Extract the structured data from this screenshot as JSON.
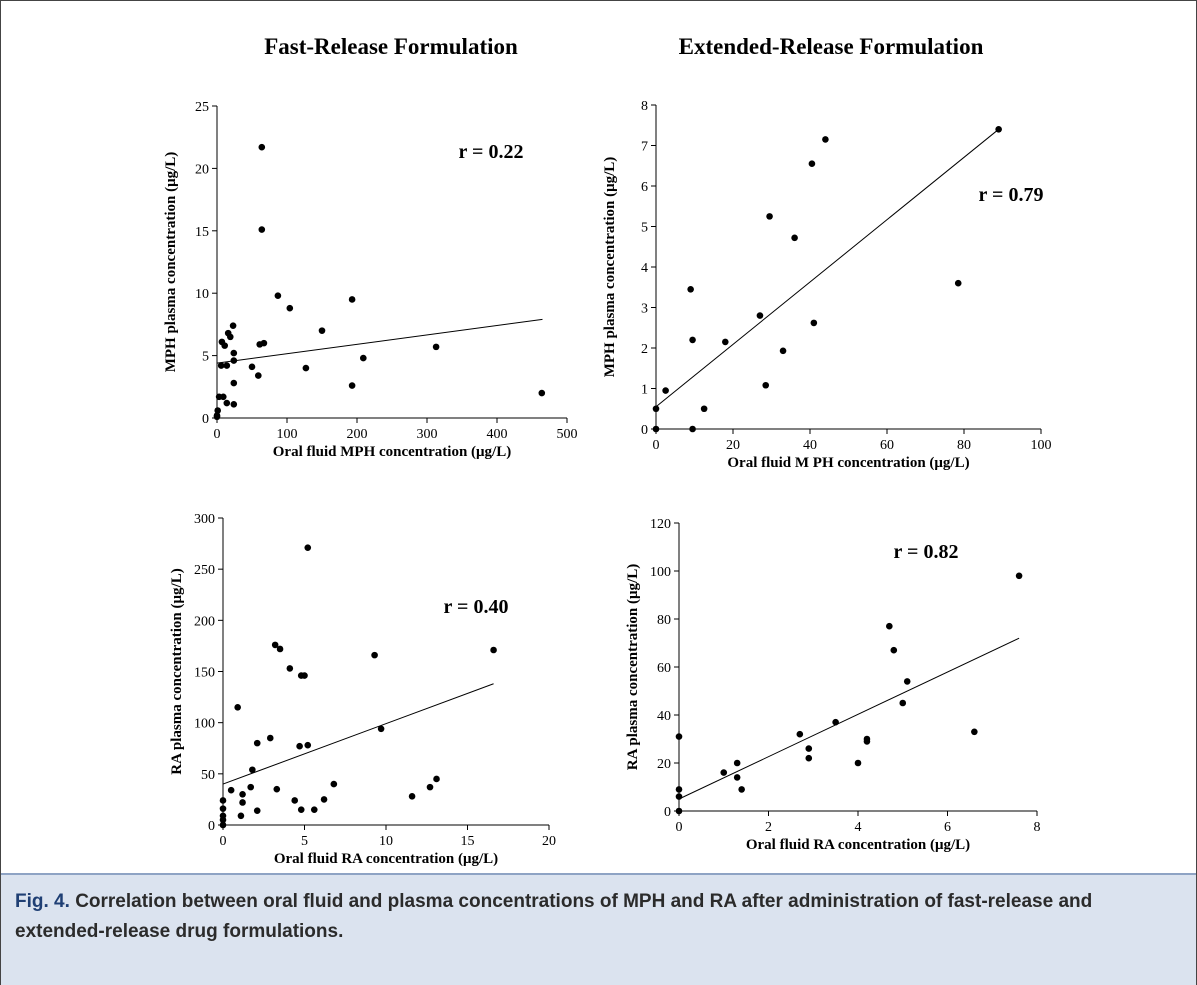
{
  "column_titles": [
    "Fast-Release Formulation",
    "Extended-Release Formulation"
  ],
  "caption": {
    "label": "Fig. 4.",
    "text": "Correlation between oral fluid and plasma concentrations of MPH and RA after administration of fast-release and extended-release drug formulations."
  },
  "chart_data": [
    {
      "type": "scatter",
      "ylabel": "MPH plasma concentration (μg/L)",
      "xlabel": "Oral fluid MPH concentration (μg/L)",
      "annotation": "r = 0.22",
      "color": "#000000",
      "x": [
        0,
        1,
        0,
        3,
        9,
        6,
        7,
        11,
        16,
        19,
        23,
        14,
        24,
        24,
        24,
        14,
        24,
        50,
        59,
        64,
        64,
        61,
        67,
        87,
        104,
        127,
        150,
        193,
        193,
        209,
        313,
        464
      ],
      "values": [
        0.1,
        0.6,
        0.2,
        1.7,
        1.7,
        4.2,
        6.1,
        5.8,
        6.8,
        6.5,
        7.4,
        4.2,
        5.2,
        4.6,
        2.8,
        1.2,
        1.1,
        4.1,
        3.4,
        21.7,
        15.1,
        5.9,
        6.0,
        9.8,
        8.8,
        4.0,
        7.0,
        9.5,
        2.6,
        4.8,
        5.7,
        2.0
      ],
      "trendline": {
        "x": [
          0,
          465
        ],
        "y": [
          4.4,
          7.9
        ]
      },
      "xlim": [
        0,
        500
      ],
      "ylim": [
        0,
        25
      ],
      "xticks": [
        0,
        100,
        200,
        300,
        400,
        500
      ],
      "yticks": [
        0,
        5,
        10,
        15,
        20,
        25
      ]
    },
    {
      "type": "scatter",
      "ylabel": "MPH plasma concentration (μg/L)",
      "xlabel": "Oral fluid M PH concentration (μg/L)",
      "annotation": "r = 0.79",
      "color": "#000000",
      "x": [
        0,
        0,
        2.5,
        9,
        9.5,
        9.5,
        12.5,
        18,
        27,
        29.5,
        28.5,
        33,
        36,
        40.5,
        44,
        41,
        78.5,
        89
      ],
      "values": [
        0,
        0.5,
        0.95,
        3.45,
        2.2,
        0,
        0.5,
        2.15,
        2.8,
        5.25,
        1.08,
        1.93,
        4.72,
        6.55,
        7.15,
        2.62,
        3.6,
        7.4
      ],
      "trendline": {
        "x": [
          0,
          89
        ],
        "y": [
          0.55,
          7.4
        ]
      },
      "xlim": [
        0,
        100
      ],
      "ylim": [
        0,
        8
      ],
      "xticks": [
        0,
        20,
        40,
        60,
        80,
        100
      ],
      "yticks": [
        0,
        1,
        2,
        3,
        4,
        5,
        6,
        7,
        8
      ]
    },
    {
      "type": "scatter",
      "ylabel": "RA plasma concentration (μg/L)",
      "xlabel": "Oral fluid RA concentration (μg/L)",
      "annotation": "r = 0.40",
      "color": "#000000",
      "x": [
        0,
        0,
        0,
        0,
        0,
        0.5,
        0.9,
        1.2,
        1.2,
        1.1,
        1.7,
        1.8,
        2.1,
        2.1,
        2.9,
        3.3,
        3.2,
        3.5,
        4.1,
        4.4,
        4.7,
        4.8,
        5.0,
        5.2,
        4.8,
        5.2,
        5.6,
        6.2,
        6.8,
        9.3,
        9.7,
        11.6,
        12.7,
        13.1,
        16.6
      ],
      "values": [
        0,
        5,
        9,
        16,
        24,
        34,
        115,
        22,
        30,
        9,
        37,
        54,
        80,
        14,
        85,
        35,
        176,
        172,
        153,
        24,
        77,
        146,
        146,
        78,
        15,
        271,
        15,
        25,
        40,
        166,
        94,
        28,
        37,
        45,
        171
      ],
      "trendline": {
        "x": [
          0,
          16.6
        ],
        "y": [
          40,
          138
        ]
      },
      "xlim": [
        0,
        20
      ],
      "ylim": [
        0,
        300
      ],
      "xticks": [
        0,
        5,
        10,
        15,
        20
      ],
      "yticks": [
        0,
        50,
        100,
        150,
        200,
        250,
        300
      ]
    },
    {
      "type": "scatter",
      "ylabel": "RA plasma concentration (μg/L)",
      "xlabel": "Oral fluid RA concentration (μg/L)",
      "annotation": "r = 0.82",
      "color": "#000000",
      "x": [
        0,
        0,
        0,
        0,
        1.0,
        1.3,
        1.3,
        1.4,
        2.7,
        2.9,
        2.9,
        3.5,
        4.0,
        4.2,
        4.2,
        4.7,
        4.8,
        5.0,
        5.1,
        6.6,
        7.6
      ],
      "values": [
        0,
        6,
        9,
        31,
        16,
        20,
        14,
        9,
        32,
        22,
        26,
        37,
        20,
        29,
        30,
        77,
        67,
        45,
        54,
        33,
        98
      ],
      "trendline": {
        "x": [
          0,
          7.6
        ],
        "y": [
          5,
          72
        ]
      },
      "xlim": [
        0,
        8
      ],
      "ylim": [
        0,
        120
      ],
      "xticks": [
        0,
        2,
        4,
        6,
        8
      ],
      "yticks": [
        0,
        20,
        40,
        60,
        80,
        100,
        120
      ]
    }
  ]
}
